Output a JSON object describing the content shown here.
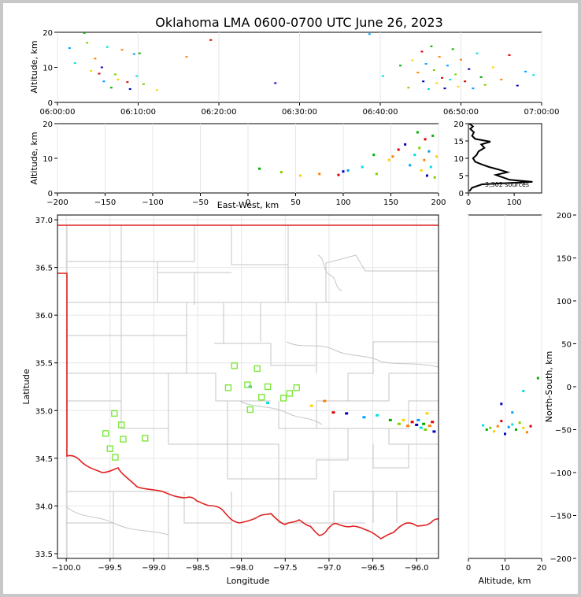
{
  "title": "Oklahoma LMA 0600-0700 UTC June 26, 2023",
  "chart_data": [
    {
      "panel": "time-altitude",
      "type": "scatter",
      "ylabel": "Altitude, km",
      "xlim": [
        "06:00:00",
        "07:00:00"
      ],
      "ylim": [
        0,
        20
      ],
      "xticks": [
        "06:00:00",
        "06:10:00",
        "06:20:00",
        "06:30:00",
        "06:40:00",
        "06:50:00",
        "07:00:00"
      ],
      "yticks": [
        "0",
        "10",
        "20"
      ],
      "points": [
        [
          "06:01:30",
          15.5
        ],
        [
          "06:02:10",
          11.2
        ],
        [
          "06:03:20",
          19.8
        ],
        [
          "06:03:40",
          17.0
        ],
        [
          "06:04:10",
          9.0
        ],
        [
          "06:04:40",
          12.5
        ],
        [
          "06:05:10",
          8.2
        ],
        [
          "06:05:30",
          10.0
        ],
        [
          "06:05:45",
          6.0
        ],
        [
          "06:06:10",
          15.8
        ],
        [
          "06:06:40",
          4.2
        ],
        [
          "06:07:10",
          8.0
        ],
        [
          "06:07:30",
          6.5
        ],
        [
          "06:08:00",
          15.0
        ],
        [
          "06:08:40",
          5.8
        ],
        [
          "06:09:00",
          3.8
        ],
        [
          "06:09:30",
          13.8
        ],
        [
          "06:09:50",
          7.5
        ],
        [
          "06:10:10",
          14.0
        ],
        [
          "06:10:40",
          5.2
        ],
        [
          "06:12:20",
          3.5
        ],
        [
          "06:16:00",
          13.0
        ],
        [
          "06:19:00",
          17.8
        ],
        [
          "06:27:00",
          5.5
        ],
        [
          "06:38:40",
          19.5
        ],
        [
          "06:40:20",
          7.5
        ],
        [
          "06:42:30",
          10.5
        ],
        [
          "06:43:30",
          4.2
        ],
        [
          "06:44:00",
          12.0
        ],
        [
          "06:44:40",
          8.5
        ],
        [
          "06:45:10",
          14.5
        ],
        [
          "06:45:20",
          6.0
        ],
        [
          "06:45:40",
          11.0
        ],
        [
          "06:46:00",
          3.8
        ],
        [
          "06:46:20",
          16.0
        ],
        [
          "06:46:40",
          9.2
        ],
        [
          "06:47:00",
          5.5
        ],
        [
          "06:47:20",
          13.0
        ],
        [
          "06:47:40",
          7.0
        ],
        [
          "06:48:00",
          4.0
        ],
        [
          "06:48:20",
          10.5
        ],
        [
          "06:48:40",
          6.5
        ],
        [
          "06:49:00",
          15.2
        ],
        [
          "06:49:20",
          8.0
        ],
        [
          "06:49:40",
          4.5
        ],
        [
          "06:50:00",
          12.2
        ],
        [
          "06:50:30",
          6.0
        ],
        [
          "06:51:00",
          9.5
        ],
        [
          "06:51:30",
          4.0
        ],
        [
          "06:52:00",
          14.0
        ],
        [
          "06:52:30",
          7.2
        ],
        [
          "06:53:00",
          5.0
        ],
        [
          "06:54:00",
          10.0
        ],
        [
          "06:55:00",
          6.5
        ],
        [
          "06:56:00",
          13.5
        ],
        [
          "06:57:00",
          4.8
        ],
        [
          "06:58:00",
          8.8
        ],
        [
          "06:59:00",
          7.8
        ]
      ]
    },
    {
      "panel": "ew-altitude",
      "type": "scatter",
      "xlabel": "East-West, km",
      "ylabel": "Altitude, km",
      "xlim": [
        -200,
        200
      ],
      "ylim": [
        0,
        20
      ],
      "xticks": [
        "−200",
        "−150",
        "−100",
        "−50",
        "0",
        "50",
        "100",
        "150",
        "200"
      ],
      "yticks": [
        "0",
        "10",
        "20"
      ],
      "points": [
        [
          12,
          7.0
        ],
        [
          35,
          6.0
        ],
        [
          55,
          5.0
        ],
        [
          75,
          5.5
        ],
        [
          95,
          5.2
        ],
        [
          100,
          6.2
        ],
        [
          105,
          6.5
        ],
        [
          120,
          7.5
        ],
        [
          132,
          11.0
        ],
        [
          135,
          5.5
        ],
        [
          148,
          9.5
        ],
        [
          152,
          10.5
        ],
        [
          158,
          12.5
        ],
        [
          165,
          14.0
        ],
        [
          170,
          8.0
        ],
        [
          175,
          11.0
        ],
        [
          178,
          17.5
        ],
        [
          180,
          13.0
        ],
        [
          182,
          6.5
        ],
        [
          185,
          9.5
        ],
        [
          186,
          15.5
        ],
        [
          188,
          5.0
        ],
        [
          190,
          12.0
        ],
        [
          192,
          7.5
        ],
        [
          194,
          16.5
        ],
        [
          196,
          4.5
        ],
        [
          198,
          10.5
        ]
      ]
    },
    {
      "panel": "altitude-histogram",
      "type": "line",
      "xlim": [
        0,
        160
      ],
      "ylim": [
        0,
        20
      ],
      "xticks": [
        "0",
        "100"
      ],
      "yticks": [
        "0",
        "5",
        "10",
        "15",
        "20"
      ],
      "annotation": "3,302 sources",
      "points": [
        [
          2,
          0.5
        ],
        [
          8,
          1.5
        ],
        [
          30,
          2.5
        ],
        [
          140,
          3.2
        ],
        [
          90,
          3.8
        ],
        [
          75,
          4.5
        ],
        [
          60,
          5.2
        ],
        [
          85,
          6.0
        ],
        [
          65,
          6.8
        ],
        [
          45,
          7.5
        ],
        [
          30,
          8.2
        ],
        [
          15,
          9.0
        ],
        [
          10,
          10.0
        ],
        [
          18,
          11.0
        ],
        [
          22,
          12.0
        ],
        [
          35,
          13.0
        ],
        [
          28,
          14.0
        ],
        [
          48,
          14.8
        ],
        [
          15,
          15.6
        ],
        [
          8,
          16.5
        ],
        [
          12,
          17.5
        ],
        [
          4,
          18.5
        ],
        [
          10,
          19.2
        ],
        [
          2,
          20.0
        ]
      ]
    },
    {
      "panel": "plan-view",
      "type": "scatter",
      "xlabel": "Longitude",
      "ylabel": "Latitude",
      "xlim": [
        -100.1,
        -95.75
      ],
      "ylim": [
        33.45,
        37.05
      ],
      "xticks": [
        "−100.0",
        "−99.5",
        "−99.0",
        "−98.5",
        "−98.0",
        "−97.5",
        "−97.0",
        "−96.5",
        "−96.0"
      ],
      "yticks": [
        "33.5",
        "34.0",
        "34.5",
        "35.0",
        "35.5",
        "36.0",
        "36.5",
        "37.0"
      ],
      "stations": [
        [
          -99.45,
          34.97
        ],
        [
          -99.37,
          34.85
        ],
        [
          -99.55,
          34.76
        ],
        [
          -99.5,
          34.6
        ],
        [
          -99.44,
          34.51
        ],
        [
          -99.35,
          34.7
        ],
        [
          -99.1,
          34.71
        ],
        [
          -98.08,
          35.47
        ],
        [
          -98.15,
          35.24
        ],
        [
          -97.93,
          35.27
        ],
        [
          -97.82,
          35.44
        ],
        [
          -97.7,
          35.25
        ],
        [
          -97.9,
          35.01
        ],
        [
          -97.77,
          35.14
        ],
        [
          -97.52,
          35.13
        ],
        [
          -97.45,
          35.18
        ],
        [
          -97.37,
          35.24
        ]
      ],
      "sources": [
        [
          -97.2,
          35.05
        ],
        [
          -97.05,
          35.1
        ],
        [
          -96.95,
          34.98
        ],
        [
          -96.8,
          34.97
        ],
        [
          -96.6,
          34.93
        ],
        [
          -96.45,
          34.95
        ],
        [
          -96.3,
          34.9
        ],
        [
          -96.2,
          34.86
        ],
        [
          -96.15,
          34.9
        ],
        [
          -96.1,
          34.84
        ],
        [
          -96.05,
          34.88
        ],
        [
          -96.0,
          34.85
        ],
        [
          -95.98,
          34.9
        ],
        [
          -95.95,
          34.82
        ],
        [
          -95.92,
          34.86
        ],
        [
          -95.9,
          34.8
        ],
        [
          -95.88,
          34.97
        ],
        [
          -95.85,
          34.84
        ],
        [
          -95.82,
          34.88
        ],
        [
          -95.8,
          34.78
        ],
        [
          -97.9,
          35.25
        ],
        [
          -97.7,
          35.08
        ]
      ]
    },
    {
      "panel": "altitude-ns",
      "type": "scatter",
      "xlabel": "Altitude, km",
      "ylabel": "North-South, km",
      "xlim": [
        0,
        20
      ],
      "ylim": [
        -200,
        200
      ],
      "xticks": [
        "0",
        "10",
        "20"
      ],
      "yticks": [
        "−200",
        "−150",
        "−100",
        "−50",
        "0",
        "50",
        "100",
        "150",
        "200"
      ],
      "points": [
        [
          4,
          -45
        ],
        [
          5,
          -50
        ],
        [
          6,
          -48
        ],
        [
          7,
          -52
        ],
        [
          8,
          -46
        ],
        [
          9,
          -40
        ],
        [
          10,
          -55
        ],
        [
          11,
          -47
        ],
        [
          12,
          -44
        ],
        [
          13,
          -50
        ],
        [
          14,
          -42
        ],
        [
          15,
          -48
        ],
        [
          16,
          -53
        ],
        [
          17,
          -46
        ],
        [
          9,
          -20
        ],
        [
          12,
          -30
        ],
        [
          15,
          -5
        ],
        [
          19,
          10
        ]
      ]
    }
  ]
}
